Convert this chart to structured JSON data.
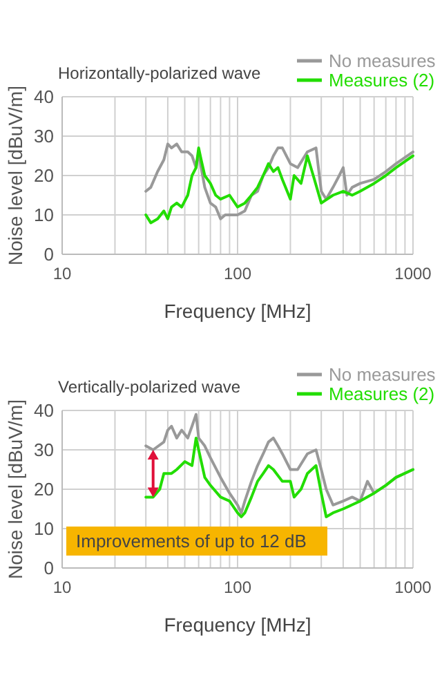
{
  "chart_data": [
    {
      "type": "line",
      "title": "Horizontally-polarized wave",
      "xlabel": "Frequency [MHz]",
      "ylabel": "Noise level [dBuV/m]",
      "log": "x",
      "xlim": [
        10,
        1000
      ],
      "xticks": [
        10,
        100,
        1000
      ],
      "ylim": [
        0,
        40
      ],
      "yticks": [
        0,
        10,
        20,
        30,
        40
      ],
      "grid": true,
      "legend": "top right",
      "series": [
        {
          "name": "No measures",
          "color": "#999999",
          "x": [
            30,
            32,
            35,
            38,
            40,
            42,
            45,
            48,
            52,
            55,
            58,
            60,
            62,
            65,
            70,
            75,
            80,
            85,
            90,
            100,
            110,
            120,
            130,
            140,
            150,
            160,
            170,
            180,
            200,
            220,
            250,
            280,
            300,
            320,
            350,
            380,
            400,
            420,
            450,
            500,
            600,
            700,
            800,
            1000
          ],
          "values": [
            16,
            17,
            21,
            24,
            28,
            27,
            28,
            26,
            26,
            25,
            22,
            26,
            22,
            17,
            13,
            12,
            9,
            10,
            10,
            10,
            11,
            15,
            16,
            20,
            22,
            25,
            27,
            27,
            23,
            22,
            26,
            27,
            16,
            14,
            17,
            20,
            22,
            15,
            17,
            18,
            19,
            21,
            23,
            26
          ]
        },
        {
          "name": "Measures (2)",
          "color": "#22dd00",
          "x": [
            30,
            32,
            35,
            38,
            40,
            42,
            45,
            48,
            52,
            55,
            58,
            60,
            62,
            65,
            70,
            75,
            80,
            90,
            100,
            110,
            120,
            130,
            140,
            150,
            160,
            170,
            180,
            200,
            210,
            230,
            250,
            270,
            300,
            350,
            400,
            450,
            500,
            600,
            700,
            800,
            1000
          ],
          "values": [
            10,
            8,
            9,
            11,
            9,
            12,
            13,
            12,
            15,
            20,
            22,
            27,
            24,
            20,
            18,
            15,
            14,
            15,
            12,
            13,
            15,
            17,
            20,
            23,
            21,
            22,
            19,
            14,
            20,
            18,
            25,
            20,
            13,
            15,
            16,
            15,
            16,
            18,
            20,
            22,
            25
          ]
        }
      ]
    },
    {
      "type": "line",
      "title": "Vertically-polarized wave",
      "xlabel": "Frequency [MHz]",
      "ylabel": "Noise level [dBuV/m]",
      "log": "x",
      "xlim": [
        10,
        1000
      ],
      "xticks": [
        10,
        100,
        1000
      ],
      "ylim": [
        0,
        40
      ],
      "yticks": [
        0,
        10,
        20,
        30,
        40
      ],
      "grid": true,
      "legend": "top right",
      "annotations": [
        "Improvements of up to 12 dB"
      ],
      "series": [
        {
          "name": "No measures",
          "color": "#999999",
          "x": [
            30,
            33,
            38,
            40,
            42,
            45,
            48,
            52,
            55,
            58,
            60,
            65,
            70,
            80,
            90,
            100,
            105,
            110,
            120,
            130,
            140,
            150,
            160,
            170,
            180,
            200,
            220,
            250,
            280,
            300,
            320,
            350,
            400,
            450,
            500,
            550,
            600,
            700,
            800,
            1000
          ],
          "values": [
            31,
            30,
            32,
            35,
            36,
            33,
            35,
            33,
            36,
            39,
            33,
            31,
            28,
            23,
            19,
            16,
            14,
            17,
            22,
            26,
            29,
            32,
            33,
            31,
            29,
            25,
            25,
            29,
            30,
            25,
            20,
            16,
            17,
            18,
            17,
            22,
            19,
            21,
            23,
            25
          ]
        },
        {
          "name": "Measures (2)",
          "color": "#22dd00",
          "x": [
            30,
            33,
            36,
            38,
            42,
            45,
            50,
            55,
            58,
            60,
            65,
            70,
            80,
            90,
            100,
            105,
            110,
            120,
            130,
            140,
            150,
            160,
            180,
            200,
            210,
            230,
            250,
            280,
            300,
            320,
            350,
            400,
            500,
            600,
            700,
            800,
            1000
          ],
          "values": [
            18,
            18,
            20,
            24,
            24,
            25,
            27,
            26,
            33,
            30,
            23,
            21,
            18,
            17,
            14,
            13,
            14,
            18,
            22,
            24,
            26,
            25,
            22,
            22,
            18,
            20,
            24,
            26,
            19,
            13,
            14,
            15,
            17,
            19,
            21,
            23,
            25
          ]
        }
      ]
    }
  ]
}
